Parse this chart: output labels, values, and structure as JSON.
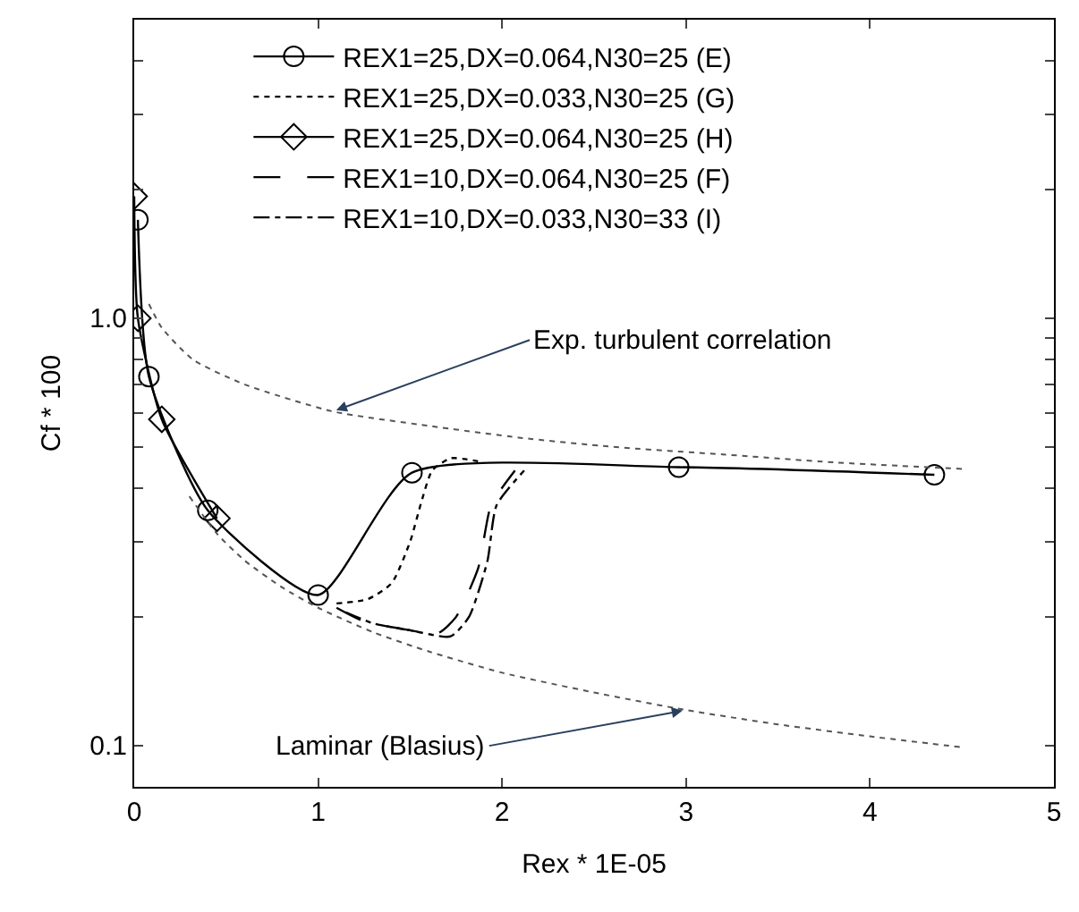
{
  "chart_data": {
    "type": "line",
    "xlabel": "Rex * 1E-05",
    "ylabel": "Cf * 100",
    "log": "y",
    "xlim": [
      0,
      5
    ],
    "xticks": [
      0,
      1,
      2,
      3,
      4,
      5
    ],
    "ylim": [
      0.08,
      5
    ],
    "yticks": [
      0.1,
      {
        "value": 0.2,
        "label": null
      },
      {
        "value": 0.3,
        "label": null
      },
      {
        "value": 0.4,
        "label": null
      },
      {
        "value": 0.5,
        "label": null
      },
      {
        "value": 0.6,
        "label": null
      },
      {
        "value": 0.7,
        "label": null
      },
      {
        "value": 0.8,
        "label": null
      },
      {
        "value": 0.9,
        "label": null
      },
      {
        "value": 1.0,
        "label": "1.0"
      },
      {
        "value": 2,
        "label": null
      },
      {
        "value": 3,
        "label": null
      },
      {
        "value": 4,
        "label": null
      }
    ],
    "legend": "top",
    "series": [
      {
        "name": "REX1=25,DX=0.064,N30=25 (E)",
        "color": "#000000",
        "marker": "circle",
        "line_style": "solid",
        "x": [
          0.02,
          0.08,
          0.4,
          1.0,
          1.51,
          2.96,
          4.35
        ],
        "values": [
          1.7,
          0.73,
          0.355,
          0.225,
          0.435,
          0.448,
          0.43
        ]
      },
      {
        "name": "REX1=25,DX=0.033,N30=25 (G)",
        "color": "#000000",
        "marker": "none",
        "line_style": "dotted",
        "x": [
          1.1,
          1.27,
          1.4,
          1.5,
          1.56,
          1.62,
          1.72,
          1.9
        ],
        "values": [
          0.215,
          0.22,
          0.24,
          0.3,
          0.37,
          0.44,
          0.47,
          0.46
        ]
      },
      {
        "name": "REX1=25,DX=0.064,N30=25 (H)",
        "color": "#000000",
        "marker": "diamond",
        "line_style": "solid",
        "x": [
          0.0,
          0.02,
          0.15,
          0.45
        ],
        "values": [
          1.93,
          1.0,
          0.58,
          0.34
        ]
      },
      {
        "name": "REX1=10,DX=0.064,N30=25 (F)",
        "color": "#000000",
        "marker": "none",
        "line_style": "dashed",
        "x": [
          1.1,
          1.25,
          1.44,
          1.65,
          1.75,
          1.87,
          1.94,
          2.07
        ],
        "values": [
          0.21,
          0.195,
          0.188,
          0.183,
          0.2,
          0.26,
          0.365,
          0.44
        ]
      },
      {
        "name": "REX1=10,DX=0.033,N30=33 (I)",
        "color": "#000000",
        "marker": "none",
        "line_style": "dashdot",
        "x": [
          1.15,
          1.3,
          1.5,
          1.72,
          1.82,
          1.92,
          1.97,
          2.12
        ],
        "values": [
          0.205,
          0.193,
          0.186,
          0.18,
          0.2,
          0.27,
          0.365,
          0.44
        ]
      },
      {
        "color": "#555555",
        "marker": "none",
        "line_style": "dotted",
        "x": [
          0.08,
          0.15,
          0.32,
          0.6,
          1.08,
          1.6,
          2.1,
          2.6,
          3.2,
          3.8,
          4.5
        ],
        "values": [
          1.08,
          0.95,
          0.8,
          0.7,
          0.605,
          0.56,
          0.525,
          0.5,
          0.48,
          0.46,
          0.444
        ]
      },
      {
        "color": "#555555",
        "marker": "none",
        "line_style": "dotted",
        "x": [
          0.3,
          0.45,
          0.6,
          0.8,
          1.0,
          1.3,
          1.6,
          2.0,
          2.5,
          3.0,
          3.5,
          4.0,
          4.5
        ],
        "values": [
          0.383,
          0.313,
          0.271,
          0.235,
          0.21,
          0.184,
          0.166,
          0.148,
          0.133,
          0.121,
          0.112,
          0.105,
          0.099
        ]
      }
    ],
    "annotations": [
      {
        "text": "Exp. turbulent correlation",
        "x": 1.08,
        "y": 0.605
      },
      {
        "text": "Laminar (Blasius)",
        "x": 3.0,
        "y": 0.121
      }
    ]
  }
}
